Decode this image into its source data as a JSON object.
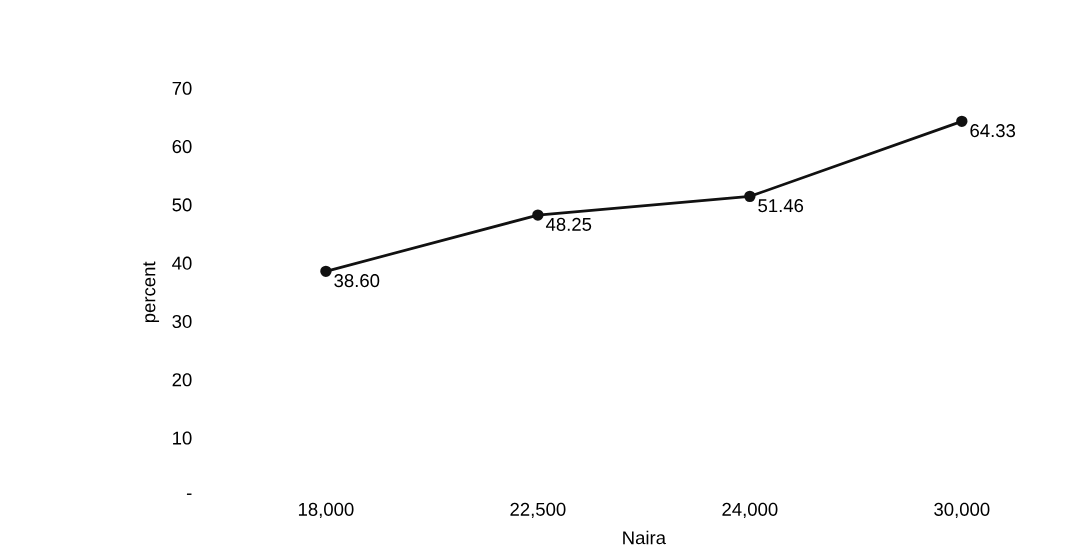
{
  "chart_data": {
    "type": "line",
    "xlabel": "Naira",
    "ylabel": "percent",
    "categories": [
      "18,000",
      "22,500",
      "24,000",
      "30,000"
    ],
    "values": [
      38.6,
      48.25,
      51.46,
      64.33
    ],
    "value_labels": [
      "38.60",
      "48.25",
      "51.46",
      "64.33"
    ],
    "color": "#111111",
    "marker": "circle",
    "line_style": "solid",
    "ylim": [
      0,
      70
    ],
    "yticks": [
      {
        "value": 0,
        "label": "-"
      },
      10,
      20,
      30,
      40,
      50,
      60,
      70
    ]
  }
}
